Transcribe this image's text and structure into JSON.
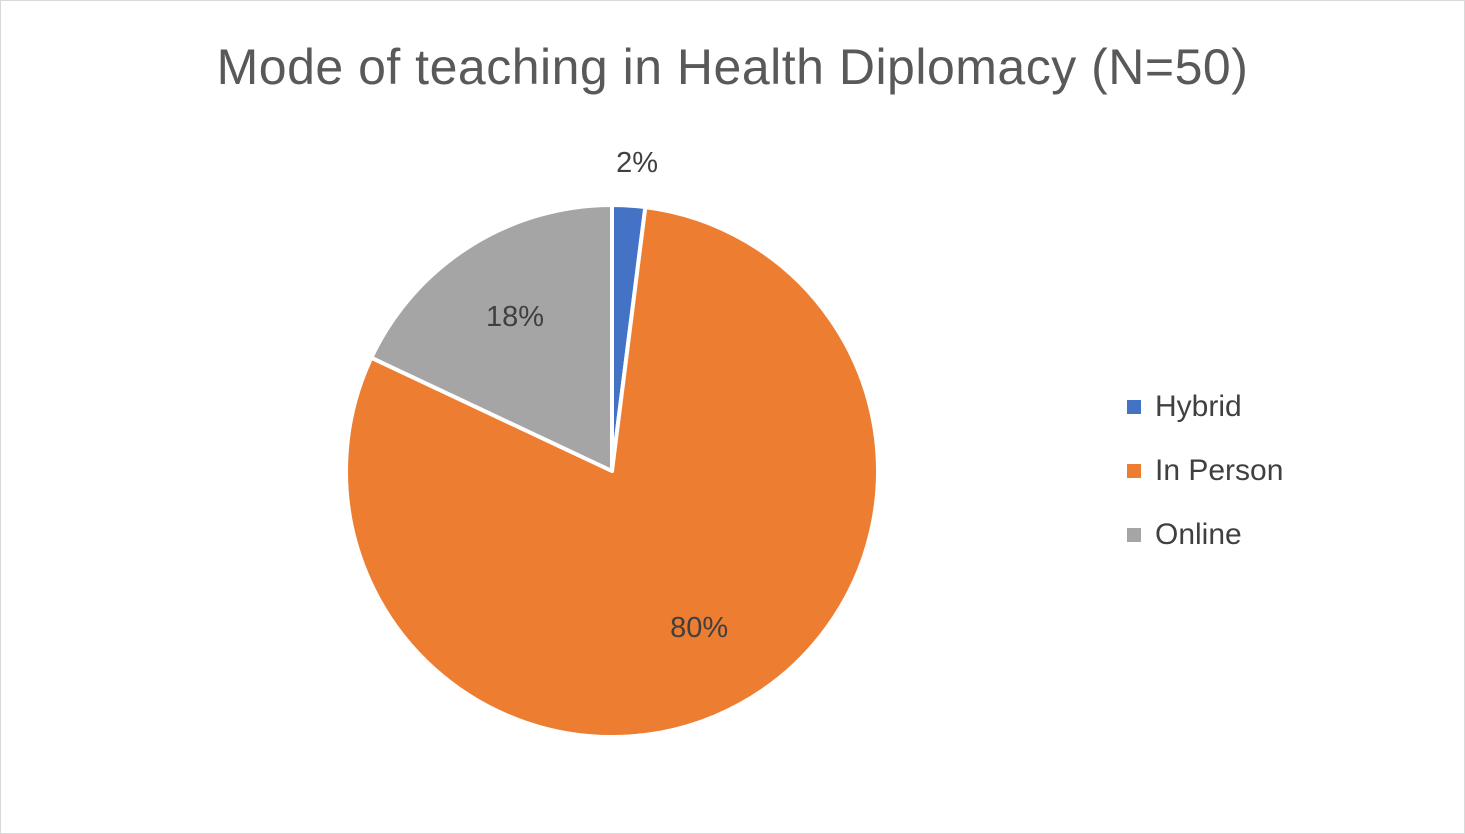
{
  "chart_data": {
    "type": "pie",
    "title": "Mode of teaching in Health Diplomacy (N=50)",
    "categories": [
      "Hybrid",
      "In Person",
      "Online"
    ],
    "values": [
      2,
      80,
      18
    ],
    "data_labels": [
      "2%",
      "80%",
      "18%"
    ],
    "colors": [
      "#4472c4",
      "#ed7d31",
      "#a5a5a5"
    ],
    "legend_position": "right",
    "start_angle": "top, clockwise"
  }
}
